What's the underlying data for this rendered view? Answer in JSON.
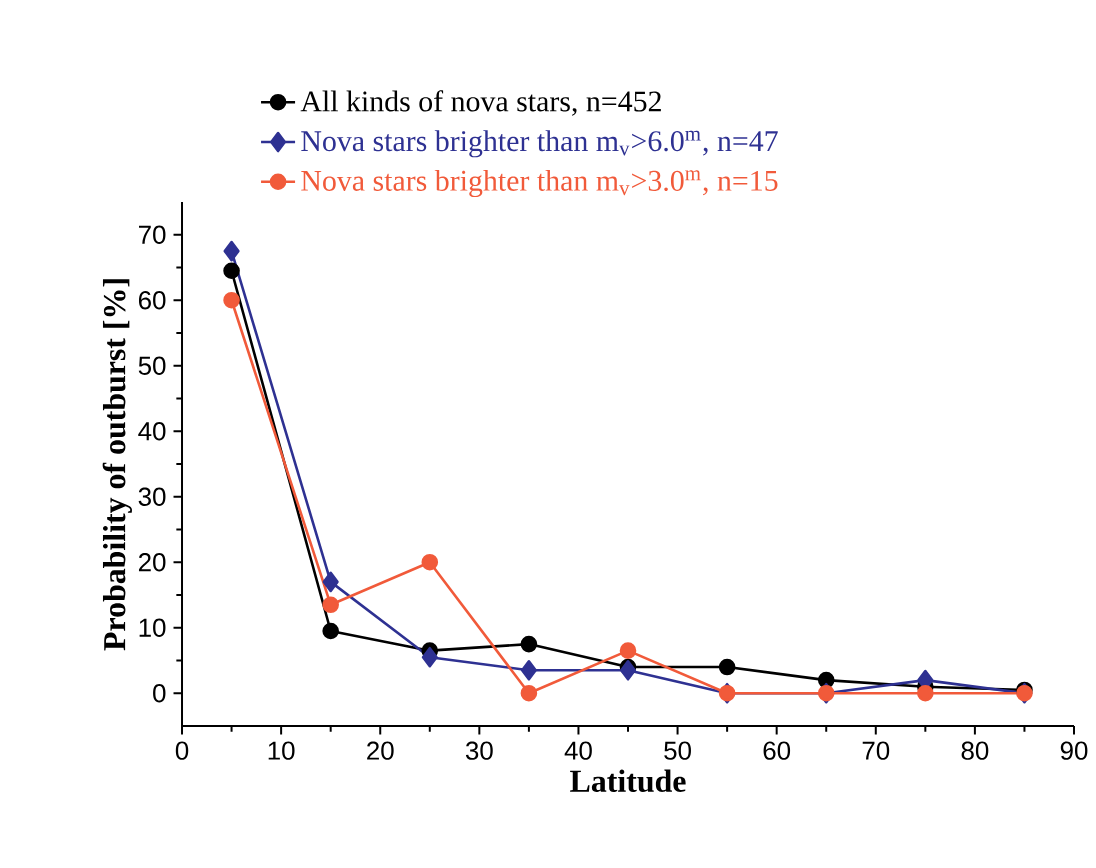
{
  "chart_data": {
    "type": "line",
    "xlabel": "Latitude",
    "ylabel": "Probability of outburst [%]",
    "x": [
      5,
      15,
      25,
      35,
      45,
      55,
      65,
      75,
      85
    ],
    "series": [
      {
        "name": "All kinds of nova stars, n=452",
        "color": "#000000",
        "marker": "circle",
        "values": [
          64.5,
          9.5,
          6.5,
          7.5,
          4,
          4,
          2,
          1,
          0.5
        ]
      },
      {
        "name": "Nova stars brighter than m$_{v}$>6.0$^{m}$, n=47",
        "color": "#2e3192",
        "marker": "diamond",
        "values": [
          67.5,
          17,
          5.5,
          3.5,
          3.5,
          0,
          0,
          2,
          0
        ]
      },
      {
        "name": "Nova stars brighter than m$_{v}$>3.0$^{m}$, n=15",
        "color": "#f15a3a",
        "marker": "circle",
        "values": [
          60,
          13.5,
          20,
          0,
          6.5,
          0,
          0,
          0,
          0
        ]
      }
    ],
    "xlim": [
      0,
      90
    ],
    "xticks": [
      0,
      10,
      20,
      30,
      40,
      50,
      60,
      70,
      80,
      90
    ],
    "ylim": [
      -5,
      75
    ],
    "yticks": [
      0,
      10,
      20,
      30,
      40,
      50,
      60,
      70
    ],
    "grid": false,
    "legend": "top",
    "line_style": "solid"
  }
}
